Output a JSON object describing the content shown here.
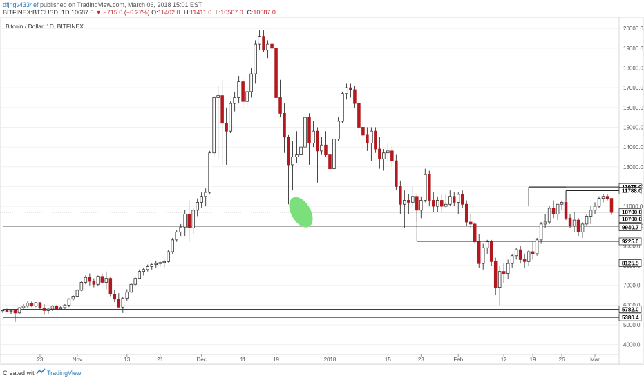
{
  "header": {
    "user": "dfjngv4334ef",
    "published_text": " published on TradingView.com, March 06, 2018 15:01 EST",
    "symbol": "BITFINEX:BTCUSD, 1D",
    "last": "10687.0",
    "arrow": "▼",
    "change": "−715.0 (−6.27%)",
    "o_label": "O:",
    "o_value": "11402.0",
    "h_label": "H:",
    "h_value": "11411.0",
    "l_label": "L:",
    "l_value": "10567.0",
    "c_label": "C:",
    "c_value": "10687.0"
  },
  "footer": {
    "created_label": "Created with",
    "brand": "TradingView"
  },
  "colors": {
    "up_body": "#ffffff",
    "down_body": "#b2181d",
    "wick": "#333333",
    "line": "#222222",
    "grid": "#f0f0f0",
    "highlight": "#7be07b"
  },
  "chart_data": {
    "type": "candlestick",
    "title": "Bitcoin / Dollar, 1D, BITFINEX",
    "ylim": [
      3500,
      20600
    ],
    "y_ticks": [
      4000,
      5000,
      6000,
      7000,
      8000,
      9000,
      10000,
      11000,
      12000,
      13000,
      14000,
      15000,
      16000,
      17000,
      18000,
      19000,
      20000
    ],
    "x_ticks": [
      {
        "label": "23",
        "day": 9
      },
      {
        "label": "Nov",
        "day": 18
      },
      {
        "label": "13",
        "day": 30
      },
      {
        "label": "21",
        "day": 38
      },
      {
        "label": "Dec",
        "day": 48
      },
      {
        "label": "11",
        "day": 58
      },
      {
        "label": "19",
        "day": 66
      },
      {
        "label": "2018",
        "day": 79
      },
      {
        "label": "15",
        "day": 93
      },
      {
        "label": "23",
        "day": 101
      },
      {
        "label": "Feb",
        "day": 110
      },
      {
        "label": "12",
        "day": 121
      },
      {
        "label": "19",
        "day": 128
      },
      {
        "label": "26",
        "day": 135
      },
      {
        "label": "Mar",
        "day": 143
      }
    ],
    "candles": [
      {
        "o": 5720,
        "h": 5790,
        "l": 5600,
        "c": 5740
      },
      {
        "o": 5740,
        "h": 5820,
        "l": 5640,
        "c": 5680
      },
      {
        "o": 5680,
        "h": 5780,
        "l": 5550,
        "c": 5720
      },
      {
        "o": 5720,
        "h": 5760,
        "l": 5150,
        "c": 5600
      },
      {
        "o": 5600,
        "h": 5900,
        "l": 5560,
        "c": 5870
      },
      {
        "o": 5870,
        "h": 6050,
        "l": 5790,
        "c": 5950
      },
      {
        "o": 5950,
        "h": 6180,
        "l": 5880,
        "c": 6100
      },
      {
        "o": 6100,
        "h": 6180,
        "l": 5900,
        "c": 5960
      },
      {
        "o": 5960,
        "h": 6150,
        "l": 5900,
        "c": 6120
      },
      {
        "o": 6120,
        "h": 6150,
        "l": 5750,
        "c": 5850
      },
      {
        "o": 5850,
        "h": 6050,
        "l": 5500,
        "c": 5720
      },
      {
        "o": 5720,
        "h": 5850,
        "l": 5570,
        "c": 5800
      },
      {
        "o": 5800,
        "h": 6000,
        "l": 5700,
        "c": 5950
      },
      {
        "o": 5950,
        "h": 6000,
        "l": 5760,
        "c": 5810
      },
      {
        "o": 5810,
        "h": 5950,
        "l": 5760,
        "c": 5880
      },
      {
        "o": 5880,
        "h": 6050,
        "l": 5800,
        "c": 6000
      },
      {
        "o": 6000,
        "h": 6350,
        "l": 5900,
        "c": 6300
      },
      {
        "o": 6300,
        "h": 6500,
        "l": 6200,
        "c": 6450
      },
      {
        "o": 6450,
        "h": 6800,
        "l": 6400,
        "c": 6750
      },
      {
        "o": 6750,
        "h": 7200,
        "l": 6700,
        "c": 7150
      },
      {
        "o": 7150,
        "h": 7500,
        "l": 7050,
        "c": 7400
      },
      {
        "o": 7400,
        "h": 7600,
        "l": 7000,
        "c": 7200
      },
      {
        "o": 7200,
        "h": 7350,
        "l": 6900,
        "c": 7050
      },
      {
        "o": 7050,
        "h": 7500,
        "l": 6950,
        "c": 7450
      },
      {
        "o": 7450,
        "h": 7600,
        "l": 7100,
        "c": 7150
      },
      {
        "o": 7150,
        "h": 7700,
        "l": 6800,
        "c": 7350
      },
      {
        "o": 7350,
        "h": 7400,
        "l": 6450,
        "c": 6550
      },
      {
        "o": 6550,
        "h": 6750,
        "l": 6150,
        "c": 6300
      },
      {
        "o": 6300,
        "h": 6600,
        "l": 5850,
        "c": 5900
      },
      {
        "o": 5900,
        "h": 6400,
        "l": 5600,
        "c": 6350
      },
      {
        "o": 6350,
        "h": 6800,
        "l": 6200,
        "c": 6650
      },
      {
        "o": 6650,
        "h": 7100,
        "l": 6600,
        "c": 7050
      },
      {
        "o": 7050,
        "h": 7450,
        "l": 6950,
        "c": 7350
      },
      {
        "o": 7350,
        "h": 7800,
        "l": 7300,
        "c": 7700
      },
      {
        "o": 7700,
        "h": 7900,
        "l": 7500,
        "c": 7800
      },
      {
        "o": 7800,
        "h": 8050,
        "l": 7700,
        "c": 7950
      },
      {
        "o": 7950,
        "h": 8100,
        "l": 7800,
        "c": 8050
      },
      {
        "o": 8050,
        "h": 8250,
        "l": 7900,
        "c": 8100
      },
      {
        "o": 8100,
        "h": 8200,
        "l": 7950,
        "c": 8150
      },
      {
        "o": 8150,
        "h": 8300,
        "l": 7900,
        "c": 8200
      },
      {
        "o": 8200,
        "h": 8800,
        "l": 8150,
        "c": 8700
      },
      {
        "o": 8700,
        "h": 9400,
        "l": 8600,
        "c": 9300
      },
      {
        "o": 9300,
        "h": 9800,
        "l": 9200,
        "c": 9700
      },
      {
        "o": 9700,
        "h": 10100,
        "l": 9500,
        "c": 9950
      },
      {
        "o": 9950,
        "h": 10800,
        "l": 9500,
        "c": 10600
      },
      {
        "o": 10600,
        "h": 11300,
        "l": 9200,
        "c": 9900
      },
      {
        "o": 9900,
        "h": 10900,
        "l": 9600,
        "c": 10800
      },
      {
        "o": 10800,
        "h": 11400,
        "l": 10500,
        "c": 11200
      },
      {
        "o": 11200,
        "h": 11700,
        "l": 10900,
        "c": 11500
      },
      {
        "o": 11500,
        "h": 11900,
        "l": 11000,
        "c": 11700
      },
      {
        "o": 11700,
        "h": 13800,
        "l": 11600,
        "c": 13700
      },
      {
        "o": 13700,
        "h": 16600,
        "l": 13500,
        "c": 16500
      },
      {
        "o": 16500,
        "h": 17100,
        "l": 13400,
        "c": 16600
      },
      {
        "o": 16600,
        "h": 17400,
        "l": 13100,
        "c": 15200
      },
      {
        "o": 15200,
        "h": 16000,
        "l": 13100,
        "c": 14800
      },
      {
        "o": 14800,
        "h": 16300,
        "l": 14700,
        "c": 16200
      },
      {
        "o": 16200,
        "h": 16800,
        "l": 15800,
        "c": 16500
      },
      {
        "o": 16500,
        "h": 17600,
        "l": 16200,
        "c": 17300
      },
      {
        "o": 17300,
        "h": 17500,
        "l": 16000,
        "c": 16300
      },
      {
        "o": 16300,
        "h": 17000,
        "l": 16100,
        "c": 16800
      },
      {
        "o": 16800,
        "h": 18000,
        "l": 16500,
        "c": 17700
      },
      {
        "o": 17700,
        "h": 19400,
        "l": 17200,
        "c": 19200
      },
      {
        "o": 19200,
        "h": 19900,
        "l": 18900,
        "c": 19600
      },
      {
        "o": 19600,
        "h": 19900,
        "l": 18800,
        "c": 18900
      },
      {
        "o": 18900,
        "h": 19400,
        "l": 18500,
        "c": 19200
      },
      {
        "o": 19200,
        "h": 19300,
        "l": 18600,
        "c": 19000
      },
      {
        "o": 19000,
        "h": 19100,
        "l": 16000,
        "c": 16500
      },
      {
        "o": 16500,
        "h": 17400,
        "l": 15500,
        "c": 15700
      },
      {
        "o": 15700,
        "h": 16200,
        "l": 13700,
        "c": 14500
      },
      {
        "o": 14500,
        "h": 14600,
        "l": 11100,
        "c": 13100
      },
      {
        "o": 13100,
        "h": 14300,
        "l": 11800,
        "c": 13500
      },
      {
        "o": 13500,
        "h": 14800,
        "l": 13200,
        "c": 13600
      },
      {
        "o": 13600,
        "h": 16000,
        "l": 13400,
        "c": 14000
      },
      {
        "o": 14000,
        "h": 15900,
        "l": 13800,
        "c": 15500
      },
      {
        "o": 15500,
        "h": 15700,
        "l": 13100,
        "c": 14200
      },
      {
        "o": 14200,
        "h": 15300,
        "l": 14000,
        "c": 14800
      },
      {
        "o": 14800,
        "h": 15000,
        "l": 12200,
        "c": 13800
      },
      {
        "o": 13800,
        "h": 14500,
        "l": 13600,
        "c": 14100
      },
      {
        "o": 14100,
        "h": 14800,
        "l": 13500,
        "c": 13600
      },
      {
        "o": 13600,
        "h": 14200,
        "l": 12000,
        "c": 12900
      },
      {
        "o": 12900,
        "h": 14500,
        "l": 12600,
        "c": 14400
      },
      {
        "o": 14400,
        "h": 15500,
        "l": 14300,
        "c": 15300
      },
      {
        "o": 15300,
        "h": 16800,
        "l": 15200,
        "c": 16700
      },
      {
        "o": 16700,
        "h": 17200,
        "l": 16400,
        "c": 17000
      },
      {
        "o": 17000,
        "h": 17200,
        "l": 16500,
        "c": 16900
      },
      {
        "o": 16900,
        "h": 17100,
        "l": 16000,
        "c": 16200
      },
      {
        "o": 16200,
        "h": 16400,
        "l": 14500,
        "c": 15000
      },
      {
        "o": 15000,
        "h": 15400,
        "l": 13900,
        "c": 14600
      },
      {
        "o": 14600,
        "h": 15000,
        "l": 13800,
        "c": 14200
      },
      {
        "o": 14200,
        "h": 15000,
        "l": 13300,
        "c": 14800
      },
      {
        "o": 14800,
        "h": 15000,
        "l": 13700,
        "c": 13900
      },
      {
        "o": 13900,
        "h": 14500,
        "l": 12900,
        "c": 13400
      },
      {
        "o": 13400,
        "h": 13900,
        "l": 12800,
        "c": 13700
      },
      {
        "o": 13700,
        "h": 14200,
        "l": 13300,
        "c": 13800
      },
      {
        "o": 13800,
        "h": 14000,
        "l": 13000,
        "c": 13300
      },
      {
        "o": 13300,
        "h": 13600,
        "l": 11800,
        "c": 12000
      },
      {
        "o": 12000,
        "h": 12300,
        "l": 10600,
        "c": 11100
      },
      {
        "o": 11100,
        "h": 11800,
        "l": 9900,
        "c": 11300
      },
      {
        "o": 11300,
        "h": 11600,
        "l": 10600,
        "c": 11200
      },
      {
        "o": 11200,
        "h": 12000,
        "l": 11000,
        "c": 11500
      },
      {
        "o": 11500,
        "h": 11600,
        "l": 10200,
        "c": 10800
      },
      {
        "o": 10800,
        "h": 11500,
        "l": 10400,
        "c": 11300
      },
      {
        "o": 11300,
        "h": 12900,
        "l": 11200,
        "c": 12600
      },
      {
        "o": 12600,
        "h": 12800,
        "l": 11000,
        "c": 11300
      },
      {
        "o": 11300,
        "h": 11700,
        "l": 10700,
        "c": 11000
      },
      {
        "o": 11000,
        "h": 11500,
        "l": 10700,
        "c": 11300
      },
      {
        "o": 11300,
        "h": 11600,
        "l": 10700,
        "c": 11000
      },
      {
        "o": 11000,
        "h": 11600,
        "l": 10900,
        "c": 11100
      },
      {
        "o": 11100,
        "h": 11800,
        "l": 11000,
        "c": 11500
      },
      {
        "o": 11500,
        "h": 11700,
        "l": 11000,
        "c": 11200
      },
      {
        "o": 11200,
        "h": 11700,
        "l": 10600,
        "c": 11600
      },
      {
        "o": 11600,
        "h": 11800,
        "l": 10900,
        "c": 11100
      },
      {
        "o": 11100,
        "h": 11300,
        "l": 10000,
        "c": 10200
      },
      {
        "o": 10200,
        "h": 10600,
        "l": 9900,
        "c": 10100
      },
      {
        "o": 10100,
        "h": 10200,
        "l": 9100,
        "c": 9200
      },
      {
        "o": 9200,
        "h": 9600,
        "l": 7900,
        "c": 8100
      },
      {
        "o": 8100,
        "h": 9100,
        "l": 7800,
        "c": 8900
      },
      {
        "o": 8900,
        "h": 9300,
        "l": 8600,
        "c": 9200
      },
      {
        "o": 9200,
        "h": 9300,
        "l": 8000,
        "c": 8200
      },
      {
        "o": 8200,
        "h": 8400,
        "l": 6500,
        "c": 6900
      },
      {
        "o": 6900,
        "h": 8000,
        "l": 6000,
        "c": 7700
      },
      {
        "o": 7700,
        "h": 8100,
        "l": 7100,
        "c": 7600
      },
      {
        "o": 7600,
        "h": 8300,
        "l": 7300,
        "c": 8100
      },
      {
        "o": 8100,
        "h": 8600,
        "l": 7900,
        "c": 8500
      },
      {
        "o": 8500,
        "h": 8900,
        "l": 8300,
        "c": 8800
      },
      {
        "o": 8800,
        "h": 9000,
        "l": 8100,
        "c": 8300
      },
      {
        "o": 8300,
        "h": 8600,
        "l": 7900,
        "c": 8200
      },
      {
        "o": 8200,
        "h": 8800,
        "l": 8000,
        "c": 8700
      },
      {
        "o": 8700,
        "h": 9200,
        "l": 8300,
        "c": 8600
      },
      {
        "o": 8600,
        "h": 9400,
        "l": 8500,
        "c": 9300
      },
      {
        "o": 9300,
        "h": 10200,
        "l": 9100,
        "c": 10100
      },
      {
        "o": 10100,
        "h": 10600,
        "l": 9900,
        "c": 10200
      },
      {
        "o": 10200,
        "h": 11000,
        "l": 10100,
        "c": 10900
      },
      {
        "o": 10900,
        "h": 11300,
        "l": 10400,
        "c": 10600
      },
      {
        "o": 10600,
        "h": 11100,
        "l": 10300,
        "c": 11100
      },
      {
        "o": 11100,
        "h": 11300,
        "l": 10800,
        "c": 11200
      },
      {
        "o": 11200,
        "h": 11400,
        "l": 10300,
        "c": 10400
      },
      {
        "o": 10400,
        "h": 10600,
        "l": 9900,
        "c": 10000
      },
      {
        "o": 10000,
        "h": 10700,
        "l": 9700,
        "c": 10300
      },
      {
        "o": 10300,
        "h": 10400,
        "l": 9500,
        "c": 9700
      },
      {
        "o": 9700,
        "h": 10200,
        "l": 9400,
        "c": 10100
      },
      {
        "o": 10100,
        "h": 10600,
        "l": 10000,
        "c": 10500
      },
      {
        "o": 10500,
        "h": 11000,
        "l": 10100,
        "c": 10800
      },
      {
        "o": 10800,
        "h": 11200,
        "l": 10600,
        "c": 11000
      },
      {
        "o": 11000,
        "h": 11500,
        "l": 10900,
        "c": 11400
      },
      {
        "o": 11400,
        "h": 11600,
        "l": 11200,
        "c": 11500
      },
      {
        "o": 11500,
        "h": 11600,
        "l": 11300,
        "c": 11400
      },
      {
        "o": 11400,
        "h": 11411,
        "l": 10567,
        "c": 10687
      }
    ],
    "horizontal_levels": [
      {
        "price": 11975.0,
        "label": "11975.0",
        "from_day": 127
      },
      {
        "price": 11788.0,
        "label": "11788.0",
        "from_day": 136
      },
      {
        "price": 10700.0,
        "label": "10700.0",
        "from_day": 81,
        "label2": "10700.0"
      },
      {
        "price": 10000.0,
        "label": null,
        "from_day": 0
      },
      {
        "price": 9940.7,
        "label": "9940.7",
        "from_day": null
      },
      {
        "price": 9225.0,
        "label": "9225.0",
        "from_day": 100
      },
      {
        "price": 8125.5,
        "label": "8125.5",
        "from_day": 24
      },
      {
        "price": 5782.0,
        "label": "5782.0",
        "from_day": 0
      },
      {
        "price": 5380.4,
        "label": "5380.4",
        "from_day": 0
      }
    ],
    "current_price": {
      "value": 10687.0,
      "label": "10687.0"
    },
    "annotation": {
      "type": "ellipse",
      "color": "#7be07b",
      "center_day": 72,
      "center_price": 10700
    }
  }
}
